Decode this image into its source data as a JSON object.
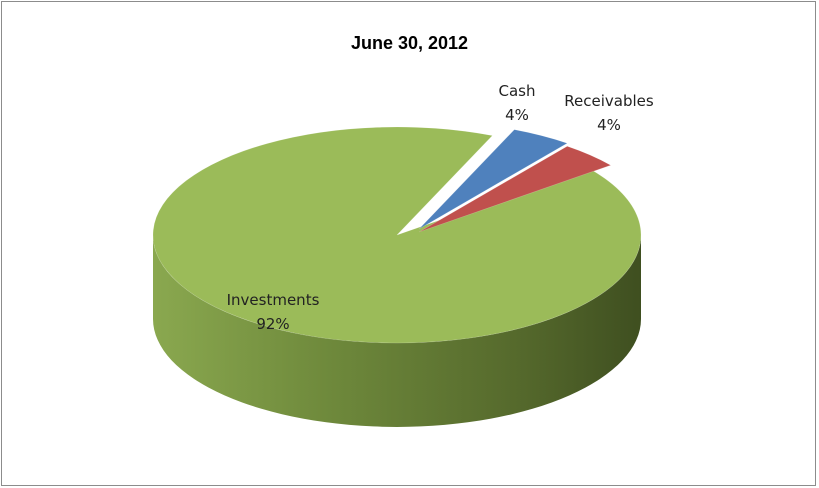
{
  "chart_data": {
    "type": "pie",
    "title": "June 30, 2012",
    "slices": [
      {
        "label": "Cash",
        "value": 4,
        "percent_label": "4%",
        "color": "#4f81bd"
      },
      {
        "label": "Receivables",
        "value": 4,
        "percent_label": "4%",
        "color": "#c0504d"
      },
      {
        "label": "Investments",
        "value": 92,
        "percent_label": "92%",
        "color": "#9bbb59"
      }
    ],
    "exploded": true,
    "style": "3d"
  }
}
